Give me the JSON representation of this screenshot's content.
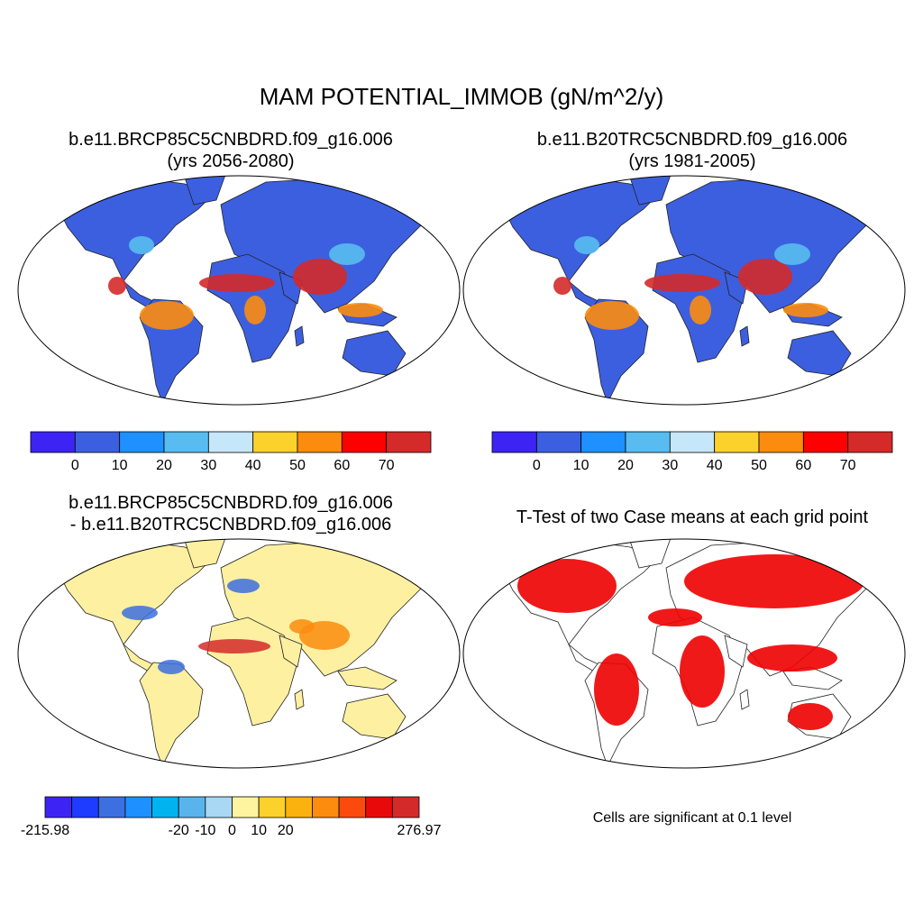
{
  "figure": {
    "title": "MAM POTENTIAL_IMMOB (gN/m^2/y)",
    "note": "Cells are significant at 0.1 level"
  },
  "panels": {
    "top_left": {
      "line1": "b.e11.BRCP85C5CNBDRD.f09_g16.006",
      "line2": "(yrs 2056-2080)"
    },
    "top_right": {
      "line1": "b.e11.B20TRC5CNBDRD.f09_g16.006",
      "line2": "(yrs 1981-2005)"
    },
    "bottom_left": {
      "line1": "b.e11.BRCP85C5CNBDRD.f09_g16.006",
      "line2": "- b.e11.B20TRC5CNBDRD.f09_g16.006"
    },
    "bottom_right": {
      "line1": "T-Test of two Case means at each grid point"
    }
  },
  "colorbars": {
    "top": {
      "colors": [
        "#3d24f4",
        "#3c5fe0",
        "#1e90ff",
        "#58bcf0",
        "#c6e6f9",
        "#fdd12c",
        "#fb8c0e",
        "#fe0000",
        "#d42a2a"
      ],
      "labels": [
        "0",
        "10",
        "20",
        "30",
        "40",
        "50",
        "60",
        "70"
      ]
    },
    "bottom": {
      "colors": [
        "#3d24f4",
        "#1e3cff",
        "#3c6fe0",
        "#1e90ff",
        "#00b4f0",
        "#5ab4ec",
        "#a9d8f4",
        "#fef4a0",
        "#fdd12c",
        "#fbb20e",
        "#fb8c0e",
        "#fc4a0e",
        "#e80a0a",
        "#d42a2a"
      ],
      "labels": [
        "-215.98",
        "-20",
        "-10",
        "0",
        "10",
        "20",
        "276.97"
      ]
    }
  },
  "map_colors": {
    "ocean": "#ffffff",
    "land_low": "#3c5fe0",
    "land_diff": "#fdf0a0",
    "sig": "#ee0000",
    "hot": "#d42a2a",
    "warm": "#fb8c0e",
    "mid": "#58bcf0",
    "neg": "#3c6fe0",
    "pos": "#fb8c0e"
  }
}
